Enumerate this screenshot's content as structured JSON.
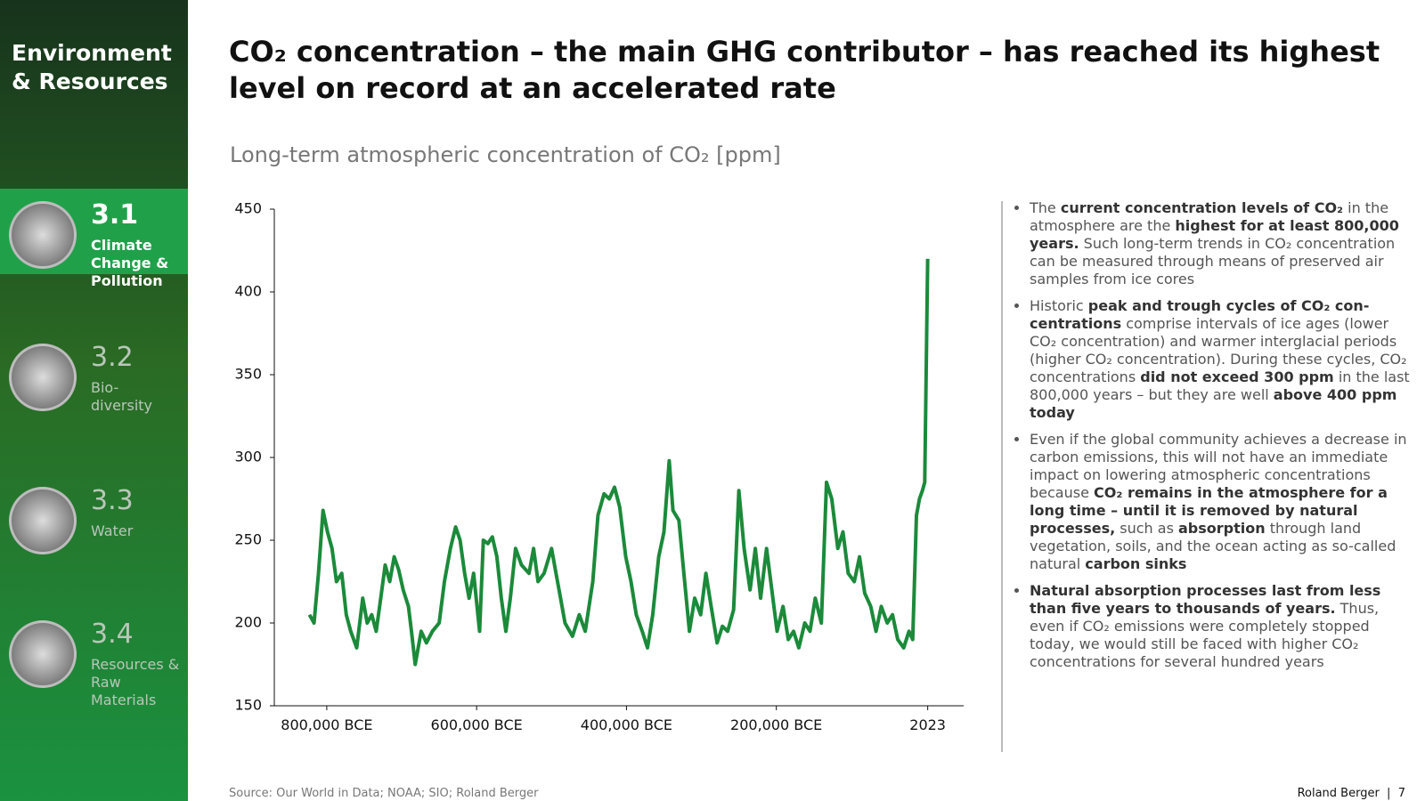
{
  "sidebar": {
    "heading": "Environment & Resources",
    "items": [
      {
        "number": "3.1",
        "label": "Climate Change & Pollution"
      },
      {
        "number": "3.2",
        "label": "Bio-diversity"
      },
      {
        "number": "3.3",
        "label": "Water"
      },
      {
        "number": "3.4",
        "label": "Resources & Raw Materials"
      }
    ]
  },
  "header": {
    "title": "CO₂ concentration – the main GHG contributor – has reached its highest level on record at an accelerated rate"
  },
  "chart_data": {
    "type": "line",
    "title": "Long-term atmospheric concentration of CO₂ [ppm]",
    "color": "#1b8a3a",
    "x": [
      -823000,
      -817000,
      -811000,
      -805000,
      -799000,
      -793000,
      -787000,
      -780000,
      -774000,
      -768000,
      -760000,
      -752000,
      -746000,
      -740000,
      -734000,
      -728000,
      -722000,
      -716000,
      -710000,
      -704000,
      -698000,
      -691000,
      -687000,
      -682000,
      -674000,
      -667000,
      -659000,
      -650000,
      -643000,
      -635000,
      -628000,
      -622000,
      -616000,
      -610000,
      -604000,
      -596000,
      -591000,
      -585000,
      -579000,
      -573000,
      -567000,
      -561000,
      -555000,
      -548000,
      -540000,
      -530000,
      -524000,
      -518000,
      -510000,
      -500000,
      -494000,
      -488000,
      -482000,
      -472000,
      -463000,
      -455000,
      -445000,
      -438000,
      -430000,
      -423000,
      -416000,
      -409000,
      -401000,
      -394000,
      -387000,
      -379000,
      -372000,
      -365000,
      -357000,
      -350000,
      -343000,
      -338000,
      -330000,
      -323000,
      -316000,
      -309000,
      -301000,
      -294000,
      -287000,
      -279000,
      -272000,
      -265000,
      -257000,
      -250000,
      -243000,
      -235000,
      -228000,
      -221000,
      -213000,
      -206000,
      -199000,
      -191000,
      -184000,
      -177000,
      -170000,
      -162000,
      -155000,
      -148000,
      -140000,
      -133000,
      -126000,
      -118000,
      -111000,
      -104000,
      -96000,
      -89000,
      -82000,
      -74000,
      -67000,
      -60000,
      -52000,
      -45000,
      -38000,
      -30000,
      -23000,
      -18000,
      -13000,
      -9000,
      -5000,
      -2000,
      2023
    ],
    "values": [
      205,
      200,
      230,
      268,
      255,
      245,
      225,
      230,
      205,
      195,
      185,
      215,
      200,
      205,
      195,
      215,
      235,
      225,
      240,
      232,
      220,
      210,
      195,
      175,
      195,
      188,
      195,
      200,
      225,
      245,
      258,
      250,
      230,
      215,
      230,
      195,
      250,
      248,
      252,
      240,
      215,
      195,
      215,
      245,
      235,
      230,
      245,
      225,
      230,
      245,
      230,
      215,
      200,
      192,
      205,
      195,
      225,
      265,
      278,
      275,
      282,
      270,
      240,
      225,
      205,
      195,
      185,
      205,
      240,
      255,
      298,
      268,
      262,
      228,
      195,
      215,
      205,
      230,
      210,
      188,
      198,
      195,
      208,
      280,
      245,
      220,
      245,
      215,
      245,
      220,
      195,
      210,
      190,
      195,
      185,
      200,
      195,
      215,
      200,
      285,
      275,
      245,
      255,
      230,
      225,
      240,
      218,
      210,
      195,
      210,
      200,
      205,
      190,
      185,
      195,
      190,
      265,
      275,
      280,
      285,
      420
    ],
    "xlim": [
      -870000,
      50000
    ],
    "ylim": [
      150,
      450
    ],
    "xticks": [
      {
        "value": -800000,
        "label": "800,000 BCE"
      },
      {
        "value": -600000,
        "label": "600,000 BCE"
      },
      {
        "value": -400000,
        "label": "400,000 BCE"
      },
      {
        "value": -200000,
        "label": "200,000 BCE"
      },
      2023
    ],
    "yticks": [
      150,
      200,
      250,
      300,
      350,
      400,
      450
    ]
  },
  "bullets": [
    [
      {
        "text": "The "
      },
      {
        "text": "current concentration levels of CO₂",
        "bold": true
      },
      {
        "text": " in the atmosphere are the "
      },
      {
        "text": "highest for at least 800,000 years.",
        "bold": true
      },
      {
        "text": " Such long-term trends in CO₂ concentration can be measured through means of preserved air samples from ice cores"
      }
    ],
    [
      {
        "text": "Historic "
      },
      {
        "text": "peak and trough cycles of CO₂ con-centrations",
        "bold": true
      },
      {
        "text": " comprise intervals of ice ages (lower CO₂ concentration) and warmer interglacial periods (higher CO₂ concentration). During these cycles, CO₂ concentrations "
      },
      {
        "text": "did not exceed 300 ppm",
        "bold": true
      },
      {
        "text": " in the last 800,000 years – but they are well "
      },
      {
        "text": "above 400 ppm today",
        "bold": true
      }
    ],
    [
      {
        "text": "Even if the global community achieves a decrease in carbon emissions, this will not have an immediate impact on lowering atmospheric concentrations because "
      },
      {
        "text": "CO₂ remains in the atmosphere for a long time – until it is removed by natural processes,",
        "bold": true
      },
      {
        "text": " such as "
      },
      {
        "text": "absorption",
        "bold": true
      },
      {
        "text": " through land vegetation, soils, and the ocean acting as so-called natural "
      },
      {
        "text": "carbon sinks",
        "bold": true
      }
    ],
    [
      {
        "text": "Natural absorption processes last from less than five years to thousands of years.",
        "bold": true
      },
      {
        "text": " Thus, even if CO₂ emissions were completely stopped today, we would still be faced with higher CO₂ concentrations for several hundred years"
      }
    ]
  ],
  "footer": {
    "source": "Source: Our World in Data; NOAA; SIO; Roland Berger",
    "brand": "Roland Berger",
    "page": 7
  }
}
